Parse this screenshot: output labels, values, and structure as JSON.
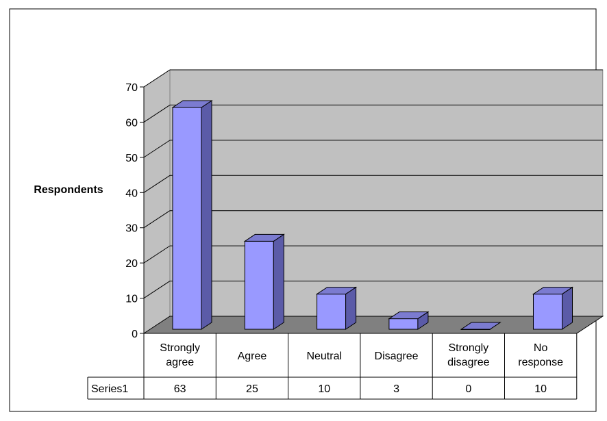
{
  "chart_data": {
    "type": "bar",
    "ylabel": "Respondents",
    "xlabel": "",
    "ylim": [
      0,
      70
    ],
    "ytick_step": 10,
    "y_ticks": [
      "0",
      "10",
      "20",
      "30",
      "40",
      "50",
      "60",
      "70"
    ],
    "categories": [
      [
        "Strongly",
        "agree"
      ],
      [
        "Agree"
      ],
      [
        "Neutral"
      ],
      [
        "Disagree"
      ],
      [
        "Strongly",
        "disagree"
      ],
      [
        "No",
        "response"
      ]
    ],
    "series": [
      {
        "name": "Series1",
        "values": [
          63,
          25,
          10,
          3,
          0,
          10
        ]
      }
    ],
    "data_table": {
      "row_label": "Series1",
      "cells": [
        "63",
        "25",
        "10",
        "3",
        "0",
        "10"
      ]
    },
    "grid": true,
    "style": "3d",
    "colors": {
      "bar_front": "#9999ff",
      "bar_side": "#5b5ba8",
      "bar_top": "#7b7bd0",
      "wall": "#c0c0c0",
      "floor": "#808080",
      "gridline": "#000000"
    }
  }
}
